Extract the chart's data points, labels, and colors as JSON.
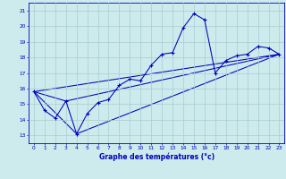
{
  "title": "Graphe des températures (°c)",
  "bg_color": "#cdeaed",
  "grid_color": "#a8cdd0",
  "line_color": "#0000bb",
  "xlim": [
    -0.5,
    23.5
  ],
  "ylim": [
    12.5,
    21.5
  ],
  "yticks": [
    13,
    14,
    15,
    16,
    17,
    18,
    19,
    20,
    21
  ],
  "xticks": [
    0,
    1,
    2,
    3,
    4,
    5,
    6,
    7,
    8,
    9,
    10,
    11,
    12,
    13,
    14,
    15,
    16,
    17,
    18,
    19,
    20,
    21,
    22,
    23
  ],
  "main_x": [
    0,
    1,
    2,
    3,
    4,
    5,
    6,
    7,
    8,
    9,
    10,
    11,
    12,
    13,
    14,
    15,
    16,
    17,
    18,
    19,
    20,
    21,
    22,
    23
  ],
  "main_y": [
    15.8,
    14.6,
    14.1,
    15.2,
    13.1,
    14.4,
    15.1,
    15.3,
    16.2,
    16.6,
    16.5,
    17.5,
    18.2,
    18.3,
    19.9,
    20.8,
    20.4,
    17.0,
    17.8,
    18.1,
    18.2,
    18.7,
    18.6,
    18.2
  ],
  "line2_x": [
    0,
    3,
    23
  ],
  "line2_y": [
    15.8,
    15.2,
    18.2
  ],
  "line3_x": [
    0,
    4,
    23
  ],
  "line3_y": [
    15.8,
    13.1,
    18.2
  ],
  "line4_x": [
    0,
    23
  ],
  "line4_y": [
    15.8,
    18.2
  ]
}
